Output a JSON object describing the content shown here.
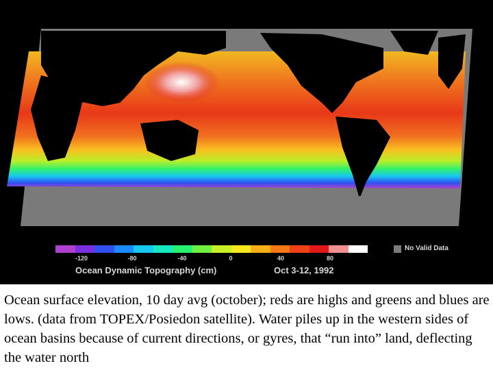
{
  "legend": {
    "title": "Ocean Dynamic Topography  (cm)",
    "date": "Oct 3-12, 1992",
    "no_data_label": "No Valid Data",
    "ticks": [
      "-120",
      "-80",
      "-40",
      "0",
      "40",
      "80"
    ],
    "scale_colors": [
      "#b040d0",
      "#7a30e0",
      "#3050f0",
      "#1a8cff",
      "#18c8f0",
      "#18e8c0",
      "#28f070",
      "#70f040",
      "#c8f028",
      "#f8e820",
      "#f8b018",
      "#f87818",
      "#f04018",
      "#e01818",
      "#f09090",
      "#ffffff"
    ]
  },
  "colors": {
    "no_data": "#7a7a7a",
    "land": "#000000",
    "high": "#e01818",
    "low": "#1a8cff"
  },
  "caption": "Ocean surface elevation, 10 day avg (october); reds are highs and greens and blues are lows. (data from TOPEX/Posiedon satellite). Water piles up in the western sides of ocean basins because of current directions, or gyres, that “run into” land, deflecting the water north"
}
